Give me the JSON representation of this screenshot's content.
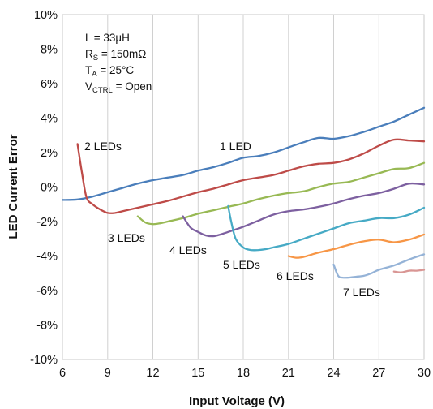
{
  "chart_data": {
    "type": "line",
    "xlabel": "Input Voltage (V)",
    "ylabel": "LED Current Error",
    "xlim": [
      6,
      30
    ],
    "ylim": [
      -10,
      10
    ],
    "x_ticks": [
      6,
      9,
      12,
      15,
      18,
      21,
      24,
      27,
      30
    ],
    "y_ticks": [
      -10,
      -8,
      -6,
      -4,
      -2,
      0,
      2,
      4,
      6,
      8,
      10
    ],
    "y_tick_suffix": "%",
    "grid": "vertical",
    "annotations": [
      "L = 33µH",
      "RS = 150mΩ",
      "TA = 25°C",
      "VCTRL = Open"
    ],
    "series": [
      {
        "name": "1 LED",
        "color": "#4a7ebb",
        "x": [
          6,
          7,
          8,
          9,
          10,
          11,
          12,
          13,
          14,
          15,
          16,
          17,
          18,
          19,
          20,
          21,
          22,
          23,
          24,
          25,
          26,
          27,
          28,
          29,
          30
        ],
        "y": [
          -0.75,
          -0.72,
          -0.55,
          -0.3,
          -0.05,
          0.2,
          0.4,
          0.55,
          0.7,
          0.95,
          1.15,
          1.4,
          1.7,
          1.8,
          2.0,
          2.3,
          2.6,
          2.85,
          2.8,
          2.95,
          3.2,
          3.5,
          3.8,
          4.2,
          4.6
        ]
      },
      {
        "name": "2 LEDs",
        "color": "#be4b48",
        "x": [
          7,
          7.3,
          7.6,
          8,
          8.5,
          9,
          9.5,
          10,
          11,
          12,
          13,
          14,
          15,
          16,
          17,
          18,
          19,
          20,
          21,
          22,
          23,
          24,
          25,
          26,
          27,
          28,
          29,
          30
        ],
        "y": [
          2.5,
          0.8,
          -0.6,
          -1.0,
          -1.3,
          -1.5,
          -1.5,
          -1.4,
          -1.2,
          -1.0,
          -0.8,
          -0.55,
          -0.3,
          -0.1,
          0.15,
          0.4,
          0.55,
          0.7,
          0.95,
          1.2,
          1.35,
          1.4,
          1.6,
          1.95,
          2.4,
          2.75,
          2.7,
          2.65
        ]
      },
      {
        "name": "3 LEDs",
        "color": "#98b954",
        "x": [
          11,
          11.5,
          12,
          12.5,
          13,
          14,
          15,
          16,
          17,
          18,
          19,
          20,
          21,
          22,
          23,
          24,
          25,
          26,
          27,
          28,
          29,
          30
        ],
        "y": [
          -1.7,
          -2.05,
          -2.15,
          -2.1,
          -2.0,
          -1.8,
          -1.55,
          -1.35,
          -1.15,
          -0.95,
          -0.7,
          -0.5,
          -0.35,
          -0.25,
          0.0,
          0.2,
          0.3,
          0.55,
          0.8,
          1.05,
          1.1,
          1.4
        ]
      },
      {
        "name": "4 LEDs",
        "color": "#7d60a0",
        "x": [
          14,
          14.5,
          15,
          15.5,
          16,
          16.5,
          17,
          18,
          19,
          20,
          21,
          22,
          23,
          24,
          25,
          26,
          27,
          28,
          29,
          30
        ],
        "y": [
          -1.7,
          -2.35,
          -2.6,
          -2.8,
          -2.85,
          -2.75,
          -2.6,
          -2.3,
          -1.95,
          -1.6,
          -1.4,
          -1.3,
          -1.15,
          -0.95,
          -0.7,
          -0.5,
          -0.35,
          -0.1,
          0.2,
          0.15
        ]
      },
      {
        "name": "5 LEDs",
        "color": "#46aac5",
        "x": [
          17,
          17.2,
          17.5,
          18,
          18.5,
          19,
          19.5,
          20,
          21,
          22,
          23,
          24,
          25,
          26,
          27,
          28,
          29,
          30
        ],
        "y": [
          -1.1,
          -2.0,
          -3.0,
          -3.5,
          -3.65,
          -3.65,
          -3.6,
          -3.5,
          -3.3,
          -3.0,
          -2.7,
          -2.4,
          -2.1,
          -1.95,
          -1.8,
          -1.8,
          -1.6,
          -1.2
        ]
      },
      {
        "name": "6 LEDs",
        "color": "#f79646",
        "x": [
          21,
          21.5,
          22,
          23,
          24,
          25,
          26,
          27,
          28,
          29,
          30
        ],
        "y": [
          -4.0,
          -4.1,
          -4.05,
          -3.8,
          -3.6,
          -3.35,
          -3.15,
          -3.05,
          -3.2,
          -3.05,
          -2.75
        ]
      },
      {
        "name": "7 LEDs",
        "color": "#95b3d7",
        "x": [
          24,
          24.3,
          24.6,
          25,
          25.5,
          26,
          26.5,
          27,
          28,
          29,
          30
        ],
        "y": [
          -4.5,
          -5.15,
          -5.25,
          -5.25,
          -5.2,
          -5.15,
          -5.0,
          -4.8,
          -4.55,
          -4.2,
          -3.9
        ]
      },
      {
        "color": "#d99694",
        "x": [
          28,
          28.5,
          29,
          29.5,
          30
        ],
        "y": [
          -4.9,
          -4.95,
          -4.85,
          -4.85,
          -4.8
        ]
      }
    ]
  }
}
